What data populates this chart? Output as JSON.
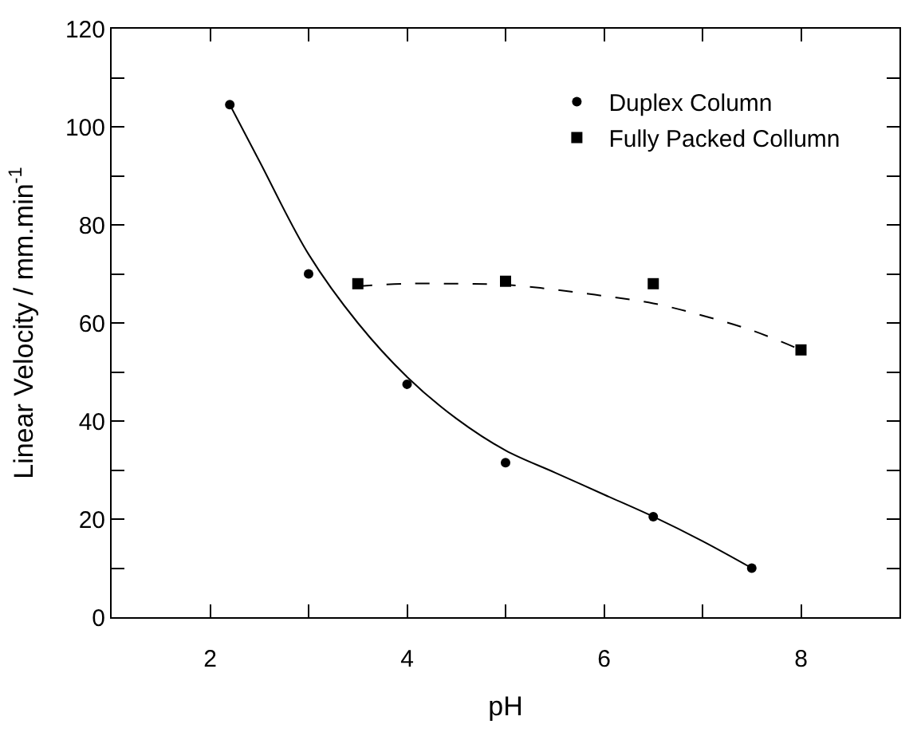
{
  "chart_data": {
    "type": "scatter",
    "xlabel": "pH",
    "ylabel": "Linear Velocity / mm.min$^{-1}$",
    "xlim": [
      1,
      9
    ],
    "ylim": [
      0,
      120
    ],
    "xticks": [
      {
        "value": 1,
        "label": null
      },
      2,
      {
        "value": 3,
        "label": null
      },
      4,
      {
        "value": 5,
        "label": null
      },
      6,
      {
        "value": 7,
        "label": null
      },
      8,
      {
        "value": 9,
        "label": null
      }
    ],
    "yticks": [
      0,
      {
        "value": 10,
        "label": null
      },
      20,
      {
        "value": 30,
        "label": null
      },
      40,
      {
        "value": 50,
        "label": null
      },
      60,
      {
        "value": 70,
        "label": null
      },
      80,
      {
        "value": 90,
        "label": null
      },
      100,
      {
        "value": 110,
        "label": null
      },
      120
    ],
    "legend": "top right",
    "series": [
      {
        "name": "Duplex Column",
        "marker": "circle",
        "color": "#000000",
        "x": [
          2.2,
          3,
          4,
          5,
          6.5,
          7.5
        ],
        "values": [
          104.5,
          70,
          47.5,
          31.5,
          20.5,
          10
        ]
      },
      {
        "name": "Fully Packed Collumn",
        "marker": "square",
        "color": "#000000",
        "x": [
          3.5,
          5,
          6.5,
          8
        ],
        "values": [
          68,
          68.5,
          68,
          54.5
        ]
      },
      {
        "type": "line",
        "line_style": "solid",
        "color": "#000000",
        "x": [
          2.2,
          2.5,
          3,
          3.5,
          4,
          4.5,
          5,
          5.5,
          6,
          6.5,
          7,
          7.5
        ],
        "values": [
          104.5,
          93,
          74,
          60,
          49,
          40.5,
          34,
          29.5,
          25,
          20.5,
          15.5,
          10
        ]
      },
      {
        "type": "line",
        "line_style": "dashed",
        "color": "#000000",
        "x": [
          3.5,
          4,
          4.5,
          5,
          5.5,
          6,
          6.5,
          7,
          7.5,
          8
        ],
        "values": [
          67.5,
          68,
          68,
          67.8,
          66.8,
          65.5,
          64,
          61.5,
          58.5,
          54.5
        ]
      }
    ]
  }
}
